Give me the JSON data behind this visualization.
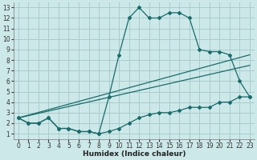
{
  "xlabel": "Humidex (Indice chaleur)",
  "bg_color": "#cce8e8",
  "grid_color": "#aacccc",
  "line_color": "#1a6b6b",
  "xlim": [
    -0.5,
    23.5
  ],
  "ylim": [
    0.5,
    13.5
  ],
  "xticks": [
    0,
    1,
    2,
    3,
    4,
    5,
    6,
    7,
    8,
    9,
    10,
    11,
    12,
    13,
    14,
    15,
    16,
    17,
    18,
    19,
    20,
    21,
    22,
    23
  ],
  "yticks": [
    1,
    2,
    3,
    4,
    5,
    6,
    7,
    8,
    9,
    10,
    11,
    12,
    13
  ],
  "series1_x": [
    0,
    1,
    2,
    3,
    4,
    5,
    6,
    7,
    8,
    9,
    10,
    11,
    12,
    13,
    14,
    15,
    16,
    17,
    18,
    19,
    20,
    21,
    22,
    23
  ],
  "series1_y": [
    2.5,
    2.0,
    2.0,
    2.5,
    1.5,
    1.5,
    1.2,
    1.2,
    1.0,
    4.5,
    8.5,
    12.0,
    13.0,
    12.0,
    12.0,
    12.5,
    12.5,
    12.0,
    9.0,
    8.8,
    8.8,
    8.5,
    6.0,
    4.5
  ],
  "series2_x": [
    0,
    23
  ],
  "series2_y": [
    2.5,
    8.5
  ],
  "series3_x": [
    0,
    23
  ],
  "series3_y": [
    2.5,
    7.5
  ],
  "series4_x": [
    0,
    1,
    2,
    3,
    4,
    5,
    6,
    7,
    8,
    9,
    10,
    11,
    12,
    13,
    14,
    15,
    16,
    17,
    18,
    19,
    20,
    21,
    22,
    23
  ],
  "series4_y": [
    2.5,
    2.0,
    2.0,
    2.5,
    1.5,
    1.5,
    1.2,
    1.2,
    1.0,
    1.2,
    1.5,
    2.0,
    2.5,
    2.8,
    3.0,
    3.0,
    3.2,
    3.5,
    3.5,
    3.5,
    4.0,
    4.0,
    4.5,
    4.5
  ],
  "tick_fontsize": 5.5,
  "xlabel_fontsize": 6.5
}
